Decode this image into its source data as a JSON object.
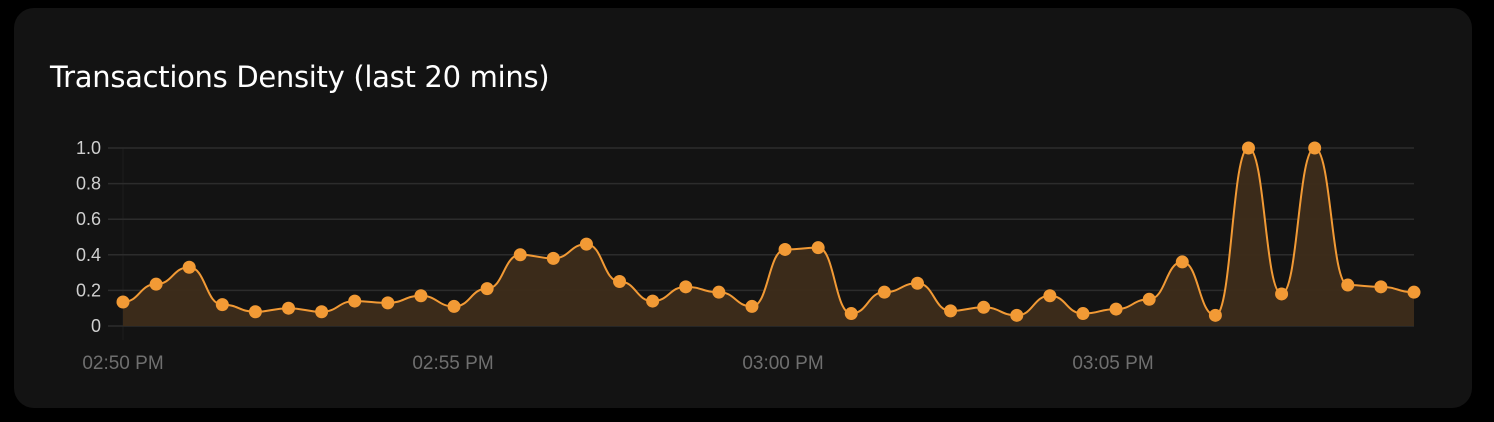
{
  "title": "Transactions Density (last 20 mins)",
  "chart_data": {
    "type": "area",
    "title": "Transactions Density (last 20 mins)",
    "xlabel": "",
    "ylabel": "",
    "ylim": [
      0,
      1.0
    ],
    "yticks": [
      "0",
      "0.2",
      "0.4",
      "0.6",
      "0.8",
      "1.0"
    ],
    "xticks": [
      "02:50 PM",
      "02:55 PM",
      "03:00 PM",
      "03:05 PM"
    ],
    "grid": true,
    "colors": {
      "line": "#f29a35",
      "fill": "#3d2c1a",
      "grid": "#2c2c2c"
    },
    "x": [
      "02:50:00",
      "02:50:30",
      "02:51:00",
      "02:51:30",
      "02:52:00",
      "02:52:30",
      "02:53:00",
      "02:53:30",
      "02:54:00",
      "02:54:30",
      "02:55:00",
      "02:55:30",
      "02:56:00",
      "02:56:30",
      "02:57:00",
      "02:57:30",
      "02:58:00",
      "02:58:30",
      "02:59:00",
      "02:59:30",
      "03:00:00",
      "03:00:30",
      "03:01:00",
      "03:01:30",
      "03:02:00",
      "03:02:30",
      "03:03:00",
      "03:03:30",
      "03:04:00",
      "03:04:30",
      "03:05:00",
      "03:05:30",
      "03:06:00",
      "03:06:30",
      "03:07:00",
      "03:07:30",
      "03:08:00",
      "03:08:30",
      "03:09:00",
      "03:09:30"
    ],
    "values": [
      0.135,
      0.235,
      0.33,
      0.12,
      0.08,
      0.1,
      0.08,
      0.14,
      0.13,
      0.17,
      0.11,
      0.21,
      0.4,
      0.38,
      0.46,
      0.25,
      0.14,
      0.22,
      0.19,
      0.11,
      0.43,
      0.44,
      0.07,
      0.19,
      0.24,
      0.085,
      0.105,
      0.06,
      0.17,
      0.07,
      0.095,
      0.15,
      0.36,
      0.06,
      1.0,
      0.18,
      1.0,
      0.23,
      0.22,
      0.19
    ]
  }
}
